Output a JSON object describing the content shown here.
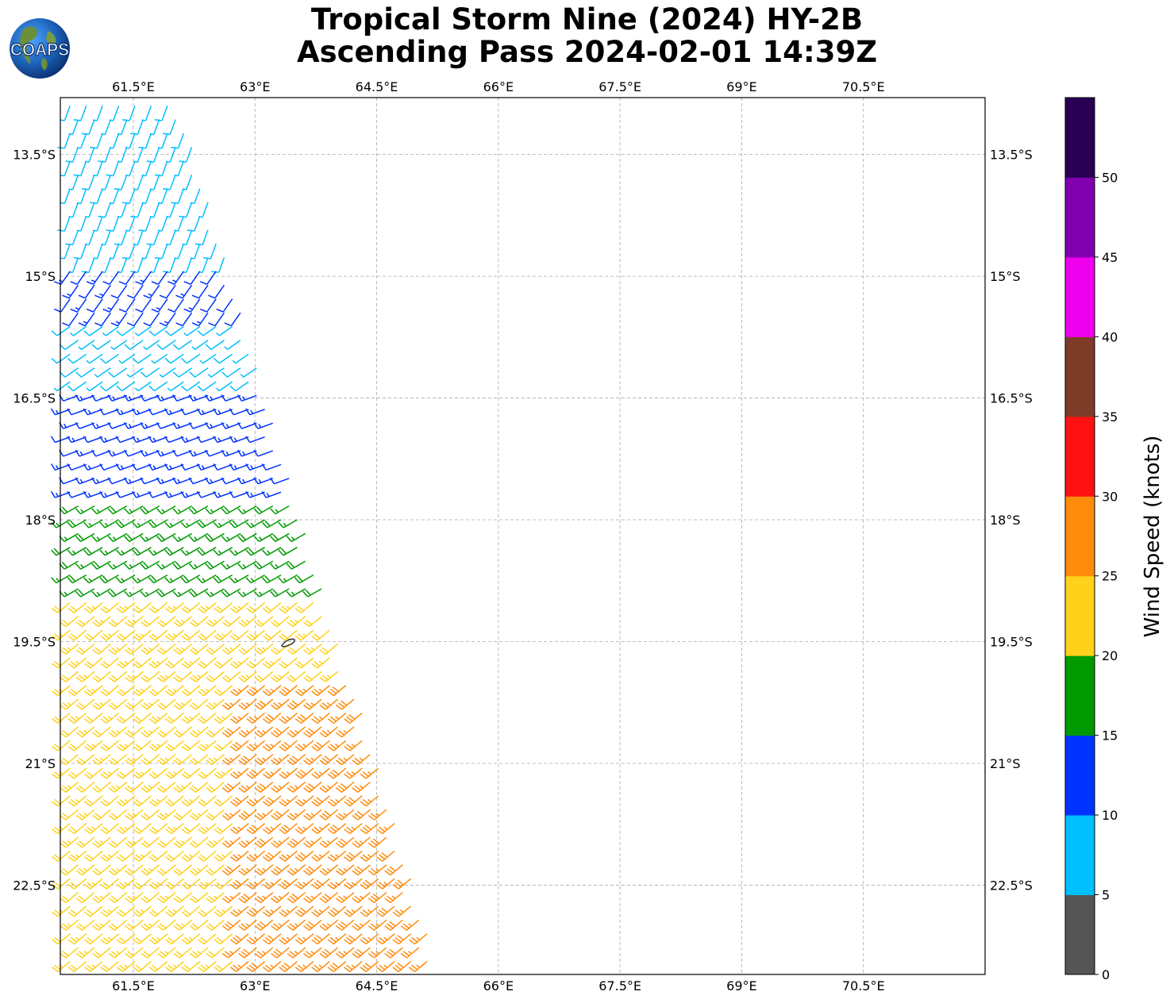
{
  "title": {
    "line1": "Tropical Storm Nine (2024) HY-2B",
    "line2": "Ascending Pass 2024-02-01 14:39Z"
  },
  "logo": {
    "text": "COAPS",
    "icon": "globe-logo-icon"
  },
  "map": {
    "lon_range": [
      60.6,
      72.0
    ],
    "lat_range": [
      -23.6,
      -12.8
    ],
    "lon_ticks": [
      "61.5°E",
      "63°E",
      "64.5°E",
      "66°E",
      "67.5°E",
      "69°E",
      "70.5°E"
    ],
    "lon_tick_values": [
      61.5,
      63,
      64.5,
      66,
      67.5,
      69,
      70.5
    ],
    "lat_ticks": [
      "13.5°S",
      "15°S",
      "16.5°S",
      "18°S",
      "19.5°S",
      "21°S",
      "22.5°S"
    ],
    "lat_tick_values": [
      -13.5,
      -15,
      -16.5,
      -18,
      -19.5,
      -21,
      -22.5
    ],
    "grid": "dashed",
    "swath": "ascending pass over western edge, 60.6°E to ~65.3°E"
  },
  "colorbar": {
    "label": "Wind Speed (knots)",
    "ticks": [
      "0",
      "5",
      "10",
      "15",
      "20",
      "25",
      "30",
      "35",
      "40",
      "45",
      "50"
    ],
    "bins": [
      {
        "min": 0,
        "max": 5,
        "color": "#555555"
      },
      {
        "min": 5,
        "max": 10,
        "color": "#00bfff"
      },
      {
        "min": 10,
        "max": 15,
        "color": "#0033ff"
      },
      {
        "min": 15,
        "max": 20,
        "color": "#009900"
      },
      {
        "min": 20,
        "max": 25,
        "color": "#ffd11a"
      },
      {
        "min": 25,
        "max": 30,
        "color": "#ff8c0d"
      },
      {
        "min": 30,
        "max": 35,
        "color": "#ff1111"
      },
      {
        "min": 35,
        "max": 40,
        "color": "#7d3c28"
      },
      {
        "min": 40,
        "max": 45,
        "color": "#ee00ee"
      },
      {
        "min": 45,
        "max": 50,
        "color": "#8000b0"
      },
      {
        "min": 50,
        "max": 55,
        "color": "#2a0055"
      }
    ]
  },
  "wind_regions": [
    {
      "lat_from": -12.8,
      "lat_to": -14.9,
      "speed": 7,
      "dir_deg": 200
    },
    {
      "lat_from": -14.9,
      "lat_to": -15.6,
      "speed": 12,
      "dir_deg": 215
    },
    {
      "lat_from": -15.6,
      "lat_to": -16.4,
      "speed": 8,
      "dir_deg": 235
    },
    {
      "lat_from": -16.4,
      "lat_to": -17.8,
      "speed": 13,
      "dir_deg": 250
    },
    {
      "lat_from": -17.8,
      "lat_to": -18.9,
      "speed": 17,
      "dir_deg": 240
    },
    {
      "lat_from": -18.9,
      "lat_to": -23.6,
      "speed": 22,
      "dir_deg": 230
    },
    {
      "lat_from": -19.9,
      "lat_to": -23.6,
      "speed": 27,
      "dir_deg": 230,
      "lon_min": 62.8
    }
  ],
  "island": {
    "name": "",
    "lon": 63.45,
    "lat": -19.7
  }
}
